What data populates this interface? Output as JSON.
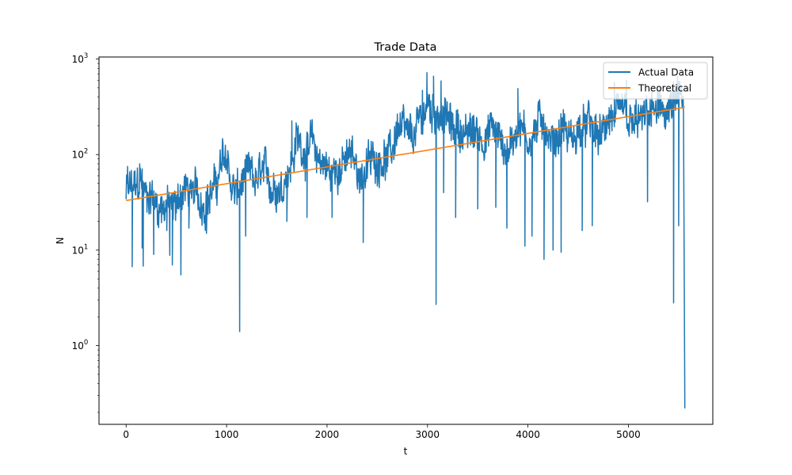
{
  "chart_data": {
    "type": "line",
    "title": "Trade Data",
    "xlabel": "t",
    "ylabel": "N",
    "xlim": [
      -270,
      5840
    ],
    "ylim": [
      0.15,
      1050
    ],
    "yscale": "log",
    "xticks": [
      0,
      1000,
      2000,
      3000,
      4000,
      5000
    ],
    "yticks": [
      {
        "value": 1,
        "label": "10^0"
      },
      {
        "value": 10,
        "label": "10^1"
      },
      {
        "value": 100,
        "label": "10^2"
      },
      {
        "value": 1000,
        "label": "10^3"
      }
    ],
    "legend_position": "top-right",
    "grid": false,
    "series": [
      {
        "name": "Actual Data",
        "color": "#1f77b4",
        "anchors": [
          [
            0,
            38
          ],
          [
            50,
            45
          ],
          [
            100,
            42
          ],
          [
            150,
            55
          ],
          [
            200,
            35
          ],
          [
            250,
            40
          ],
          [
            300,
            30
          ],
          [
            350,
            28
          ],
          [
            400,
            32
          ],
          [
            450,
            25
          ],
          [
            500,
            30
          ],
          [
            550,
            40
          ],
          [
            600,
            45
          ],
          [
            650,
            35
          ],
          [
            700,
            42
          ],
          [
            750,
            30
          ],
          [
            800,
            35
          ],
          [
            850,
            40
          ],
          [
            900,
            50
          ],
          [
            950,
            80
          ],
          [
            1000,
            100
          ],
          [
            1050,
            45
          ],
          [
            1100,
            40
          ],
          [
            1150,
            48
          ],
          [
            1200,
            60
          ],
          [
            1250,
            55
          ],
          [
            1300,
            50
          ],
          [
            1350,
            65
          ],
          [
            1400,
            60
          ],
          [
            1450,
            45
          ],
          [
            1500,
            50
          ],
          [
            1550,
            45
          ],
          [
            1600,
            70
          ],
          [
            1650,
            80
          ],
          [
            1700,
            150
          ],
          [
            1750,
            120
          ],
          [
            1800,
            110
          ],
          [
            1850,
            130
          ],
          [
            1900,
            95
          ],
          [
            1950,
            85
          ],
          [
            2000,
            70
          ],
          [
            2050,
            60
          ],
          [
            2100,
            80
          ],
          [
            2150,
            75
          ],
          [
            2200,
            90
          ],
          [
            2250,
            95
          ],
          [
            2300,
            70
          ],
          [
            2350,
            60
          ],
          [
            2400,
            75
          ],
          [
            2450,
            90
          ],
          [
            2500,
            85
          ],
          [
            2550,
            100
          ],
          [
            2600,
            90
          ],
          [
            2650,
            110
          ],
          [
            2700,
            200
          ],
          [
            2750,
            180
          ],
          [
            2800,
            150
          ],
          [
            2850,
            140
          ],
          [
            2900,
            190
          ],
          [
            2950,
            250
          ],
          [
            3000,
            350
          ],
          [
            3050,
            280
          ],
          [
            3100,
            300
          ],
          [
            3150,
            250
          ],
          [
            3200,
            230
          ],
          [
            3250,
            180
          ],
          [
            3300,
            200
          ],
          [
            3350,
            170
          ],
          [
            3400,
            150
          ],
          [
            3450,
            180
          ],
          [
            3500,
            160
          ],
          [
            3550,
            150
          ],
          [
            3600,
            160
          ],
          [
            3650,
            200
          ],
          [
            3700,
            150
          ],
          [
            3750,
            130
          ],
          [
            3800,
            110
          ],
          [
            3850,
            140
          ],
          [
            3900,
            220
          ],
          [
            3950,
            180
          ],
          [
            4000,
            150
          ],
          [
            4050,
            160
          ],
          [
            4100,
            200
          ],
          [
            4150,
            240
          ],
          [
            4200,
            150
          ],
          [
            4250,
            130
          ],
          [
            4300,
            160
          ],
          [
            4350,
            200
          ],
          [
            4400,
            150
          ],
          [
            4450,
            140
          ],
          [
            4500,
            180
          ],
          [
            4550,
            170
          ],
          [
            4600,
            210
          ],
          [
            4650,
            170
          ],
          [
            4700,
            150
          ],
          [
            4750,
            160
          ],
          [
            4800,
            250
          ],
          [
            4850,
            230
          ],
          [
            4900,
            210
          ],
          [
            4950,
            300
          ],
          [
            5000,
            200
          ],
          [
            5050,
            190
          ],
          [
            5100,
            230
          ],
          [
            5150,
            210
          ],
          [
            5200,
            270
          ],
          [
            5250,
            280
          ],
          [
            5300,
            250
          ],
          [
            5350,
            300
          ],
          [
            5400,
            280
          ],
          [
            5450,
            330
          ],
          [
            5500,
            380
          ],
          [
            5550,
            350
          ]
        ],
        "spikes": [
          [
            15,
            75
          ],
          [
            60,
            6.7
          ],
          [
            135,
            80
          ],
          [
            160,
            10.5
          ],
          [
            170,
            6.8
          ],
          [
            275,
            9
          ],
          [
            405,
            16
          ],
          [
            435,
            8.8
          ],
          [
            460,
            7
          ],
          [
            545,
            5.5
          ],
          [
            625,
            17
          ],
          [
            800,
            15
          ],
          [
            1130,
            1.4
          ],
          [
            1190,
            14
          ],
          [
            1600,
            20
          ],
          [
            1650,
            225
          ],
          [
            1800,
            22
          ],
          [
            2050,
            22
          ],
          [
            2360,
            12
          ],
          [
            2950,
            470
          ],
          [
            2995,
            720
          ],
          [
            3060,
            660
          ],
          [
            3085,
            2.7
          ],
          [
            3135,
            590
          ],
          [
            3160,
            40
          ],
          [
            3280,
            22
          ],
          [
            3500,
            27
          ],
          [
            3680,
            28
          ],
          [
            3790,
            17
          ],
          [
            3900,
            490
          ],
          [
            3970,
            11
          ],
          [
            4040,
            14
          ],
          [
            4160,
            8
          ],
          [
            4250,
            10
          ],
          [
            4330,
            9.5
          ],
          [
            4540,
            16
          ],
          [
            4640,
            18
          ],
          [
            4860,
            570
          ],
          [
            4980,
            600
          ],
          [
            5190,
            32
          ],
          [
            5290,
            520
          ],
          [
            5450,
            2.8
          ],
          [
            5500,
            18
          ],
          [
            5562,
            0.22
          ]
        ]
      },
      {
        "name": "Theoretical",
        "color": "#ff7f0e",
        "x": [
          0,
          5562
        ],
        "y": [
          33,
          313
        ]
      }
    ]
  }
}
